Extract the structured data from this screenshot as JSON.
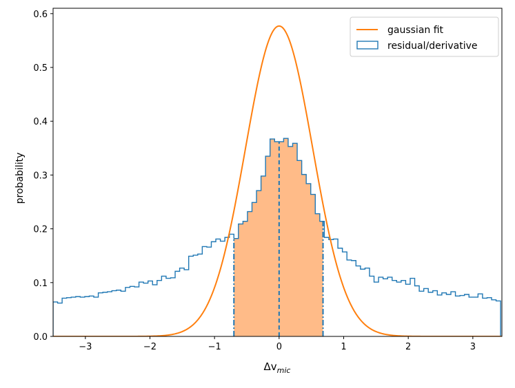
{
  "chart_data": {
    "type": "line",
    "title": "",
    "xlabel_main": "Δv",
    "xlabel_sub": "mic",
    "ylabel": "probability",
    "xlim": [
      -3.5,
      3.45
    ],
    "ylim": [
      0.0,
      0.61
    ],
    "xticks": [
      -3,
      -2,
      -1,
      0,
      1,
      2,
      3
    ],
    "xtick_labels": [
      "−3",
      "−2",
      "−1",
      "0",
      "1",
      "2",
      "3"
    ],
    "yticks": [
      0.0,
      0.1,
      0.2,
      0.3,
      0.4,
      0.5,
      0.6
    ],
    "ytick_labels": [
      "0.0",
      "0.1",
      "0.2",
      "0.3",
      "0.4",
      "0.5",
      "0.6"
    ],
    "grid": false,
    "legend_position": "top-right",
    "legend": [
      {
        "label": "gaussian fit",
        "kind": "line",
        "color": "#ff7f0e"
      },
      {
        "label": "residual/derivative",
        "kind": "step-histogram",
        "color": "#1f77b4"
      }
    ],
    "gaussian_fit": {
      "name": "gaussian fit",
      "color": "#ff7f0e",
      "mean": 0.0,
      "sigma": 0.52,
      "peak": 0.577,
      "x_range": [
        -3.5,
        3.45
      ]
    },
    "histogram": {
      "name": "residual/derivative",
      "color": "#1f77b4",
      "bin_edges": [
        -3.5,
        -3.43,
        -3.36,
        -3.29,
        -3.22,
        -3.15,
        -3.08,
        -3.01,
        -2.94,
        -2.87,
        -2.8,
        -2.73,
        -2.66,
        -2.59,
        -2.52,
        -2.45,
        -2.38,
        -2.31,
        -2.24,
        -2.17,
        -2.1,
        -2.03,
        -1.96,
        -1.89,
        -1.82,
        -1.75,
        -1.68,
        -1.61,
        -1.54,
        -1.47,
        -1.4,
        -1.33,
        -1.26,
        -1.19,
        -1.12,
        -1.05,
        -0.98,
        -0.91,
        -0.84,
        -0.77,
        -0.7,
        -0.63,
        -0.56,
        -0.49,
        -0.42,
        -0.35,
        -0.28,
        -0.21,
        -0.14,
        -0.07,
        0.0,
        0.07,
        0.14,
        0.21,
        0.28,
        0.35,
        0.42,
        0.49,
        0.56,
        0.63,
        0.7,
        0.77,
        0.84,
        0.91,
        0.98,
        1.05,
        1.12,
        1.19,
        1.26,
        1.33,
        1.4,
        1.47,
        1.54,
        1.61,
        1.68,
        1.75,
        1.82,
        1.89,
        1.96,
        2.03,
        2.1,
        2.17,
        2.24,
        2.31,
        2.38,
        2.45,
        2.52,
        2.59,
        2.66,
        2.73,
        2.8,
        2.87,
        2.94,
        3.01,
        3.08,
        3.15,
        3.22,
        3.29,
        3.36,
        3.43
      ],
      "counts": [
        0.064,
        0.062,
        0.071,
        0.072,
        0.073,
        0.074,
        0.073,
        0.074,
        0.075,
        0.073,
        0.081,
        0.082,
        0.083,
        0.085,
        0.086,
        0.084,
        0.091,
        0.093,
        0.092,
        0.101,
        0.099,
        0.103,
        0.096,
        0.104,
        0.112,
        0.108,
        0.109,
        0.121,
        0.127,
        0.124,
        0.149,
        0.151,
        0.153,
        0.167,
        0.166,
        0.176,
        0.181,
        0.177,
        0.184,
        0.19,
        0.182,
        0.209,
        0.214,
        0.232,
        0.249,
        0.271,
        0.298,
        0.335,
        0.367,
        0.362,
        0.362,
        0.368,
        0.353,
        0.359,
        0.327,
        0.301,
        0.284,
        0.264,
        0.228,
        0.214,
        0.184,
        0.18,
        0.181,
        0.164,
        0.157,
        0.142,
        0.141,
        0.131,
        0.125,
        0.127,
        0.112,
        0.101,
        0.11,
        0.107,
        0.11,
        0.104,
        0.101,
        0.104,
        0.097,
        0.108,
        0.094,
        0.084,
        0.089,
        0.082,
        0.085,
        0.077,
        0.081,
        0.078,
        0.083,
        0.075,
        0.076,
        0.078,
        0.073,
        0.073,
        0.079,
        0.071,
        0.072,
        0.068,
        0.066
      ]
    },
    "shaded_region": {
      "x_range": [
        -0.7,
        0.68
      ],
      "fill_color": "#ffbb88",
      "edge_color": "#1f77b4",
      "center_line_x": 0.0
    }
  }
}
